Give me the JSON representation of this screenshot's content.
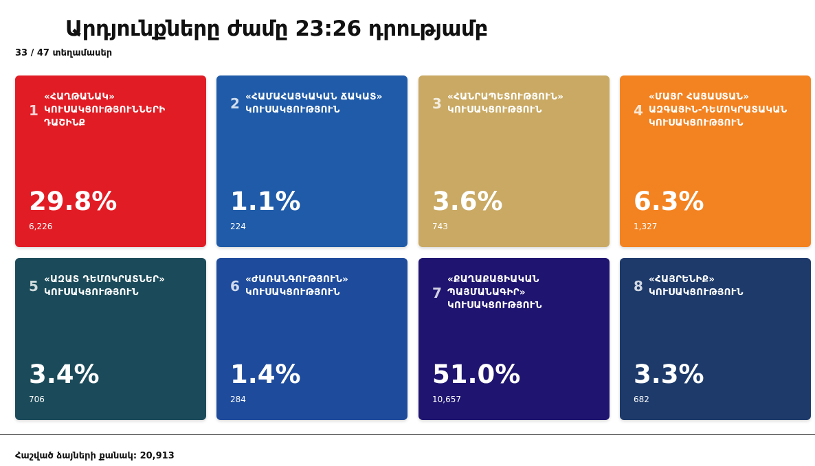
{
  "header": {
    "title": "Արդյունքները ժամը 23:26 դրությամբ",
    "subtitle": "33 / 47 տեղամասեր"
  },
  "parties": [
    {
      "num": "1",
      "name": "«ՀԱՂԹԱՆԱԿ» ԿՈՒՍԱԿՑՈՒԹՅՈՒՆՆԵՐԻ ԴԱՇԻՆՔ",
      "percent": "29.8%",
      "votes": "6,226",
      "color": "#e21c24"
    },
    {
      "num": "2",
      "name": "«ՀԱՄԱՀԱՅԿԱԿԱՆ ՃԱԿԱՏ» ԿՈՒՍԱԿՑՈՒԹՅՈՒՆ",
      "percent": "1.1%",
      "votes": "224",
      "color": "#1f5ba8"
    },
    {
      "num": "3",
      "name": "«ՀԱՆՐԱՊԵՏՈՒԹՅՈՒՆ» ԿՈՒՍԱԿՑՈՒԹՅՈՒՆ",
      "percent": "3.6%",
      "votes": "743",
      "color": "#c9a963"
    },
    {
      "num": "4",
      "name": "«ՄԱՅՐ ՀԱՅԱՍՏԱՆ» ԱԶԳԱՅԻՆ-ԴԵՄՈԿՐԱՏԱԿԱՆ ԿՈՒՍԱԿՑՈՒԹՅՈՒՆ",
      "percent": "6.3%",
      "votes": "1,327",
      "color": "#f38220"
    },
    {
      "num": "5",
      "name": "«ԱԶԱՏ ԴԵՄՈԿՐԱՏՆԵՐ» ԿՈՒՍԱԿՑՈՒԹՅՈՒՆ",
      "percent": "3.4%",
      "votes": "706",
      "color": "#1b4b5a"
    },
    {
      "num": "6",
      "name": "«ԺԱՌԱՆԳՈՒԹՅՈՒՆ» ԿՈՒՍԱԿՑՈՒԹՅՈՒՆ",
      "percent": "1.4%",
      "votes": "284",
      "color": "#1e4b9c"
    },
    {
      "num": "7",
      "name": "«ՔԱՂԱՔԱՑԻԱԿԱՆ ՊԱՅՄԱՆԱԳԻՐ» ԿՈՒՍԱԿՑՈՒԹՅՈՒՆ",
      "percent": "51.0%",
      "votes": "10,657",
      "color": "#1f1570"
    },
    {
      "num": "8",
      "name": "«ՀԱՅՐԵՆԻՔ» ԿՈՒՍԱԿՑՈՒԹՅՈՒՆ",
      "percent": "3.3%",
      "votes": "682",
      "color": "#1d3a6a"
    }
  ],
  "footer": {
    "total_votes": "Հաշված ձայների քանակ: 20,913"
  }
}
